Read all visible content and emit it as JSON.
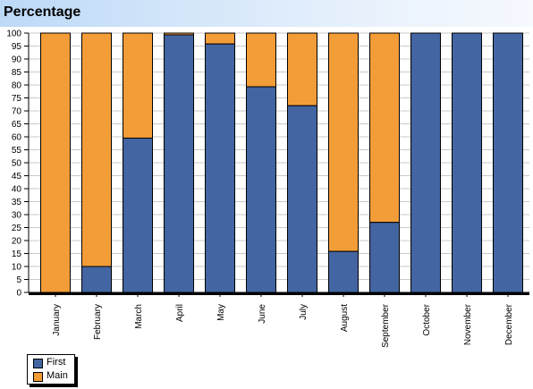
{
  "title": "Percentage",
  "colors": {
    "first": "#4365a1",
    "main": "#f39d38",
    "grid": "#c8c8c8"
  },
  "chart_data": {
    "type": "bar",
    "stacked": true,
    "title": "Percentage",
    "categories": [
      "January",
      "February",
      "March",
      "April",
      "May",
      "June",
      "July",
      "August",
      "September",
      "October",
      "November",
      "December"
    ],
    "series": [
      {
        "name": "First",
        "values": [
          0,
          10,
          59.5,
          99.3,
          95.8,
          79.3,
          72,
          15.8,
          27,
          100,
          100,
          100
        ]
      },
      {
        "name": "Main",
        "values": [
          100,
          90,
          40.5,
          0.7,
          4.2,
          20.7,
          28,
          84.2,
          73,
          0,
          0,
          0
        ]
      }
    ],
    "yticks": [
      "0",
      "5",
      "10",
      "15",
      "20",
      "25",
      "30",
      "35",
      "40",
      "45",
      "50",
      "55",
      "60",
      "65",
      "70",
      "75",
      "80",
      "85",
      "90",
      "95",
      "100"
    ],
    "ylim": [
      0,
      100
    ],
    "grid": true,
    "legend": "bottom-left"
  }
}
